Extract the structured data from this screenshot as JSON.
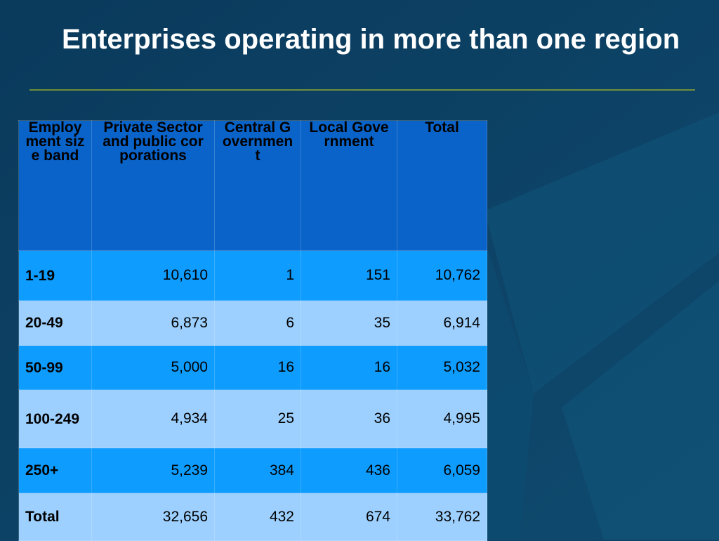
{
  "slide": {
    "title": "Enterprises operating in more than one region",
    "colors": {
      "background": "#0d4468",
      "header": "#0a63c9",
      "row_dark": "#0e9cff",
      "row_light": "#9dd0ff",
      "rule": "#6f8f3a"
    }
  },
  "table": {
    "headers": [
      "Employment size band",
      "Private Sector and public corporations",
      "Central Government",
      "Local Government",
      "Total"
    ],
    "rows": [
      {
        "band": "1-19",
        "private": "10,610",
        "central": "1",
        "local": "151",
        "total": "10,762"
      },
      {
        "band": "20-49",
        "private": "6,873",
        "central": "6",
        "local": "35",
        "total": "6,914"
      },
      {
        "band": "50-99",
        "private": "5,000",
        "central": "16",
        "local": "16",
        "total": "5,032"
      },
      {
        "band": "100-249",
        "private": "4,934",
        "central": "25",
        "local": "36",
        "total": "4,995"
      },
      {
        "band": "250+",
        "private": "5,239",
        "central": "384",
        "local": "436",
        "total": "6,059"
      },
      {
        "band": "Total",
        "private": "32,656",
        "central": "432",
        "local": "674",
        "total": "33,762"
      }
    ]
  }
}
